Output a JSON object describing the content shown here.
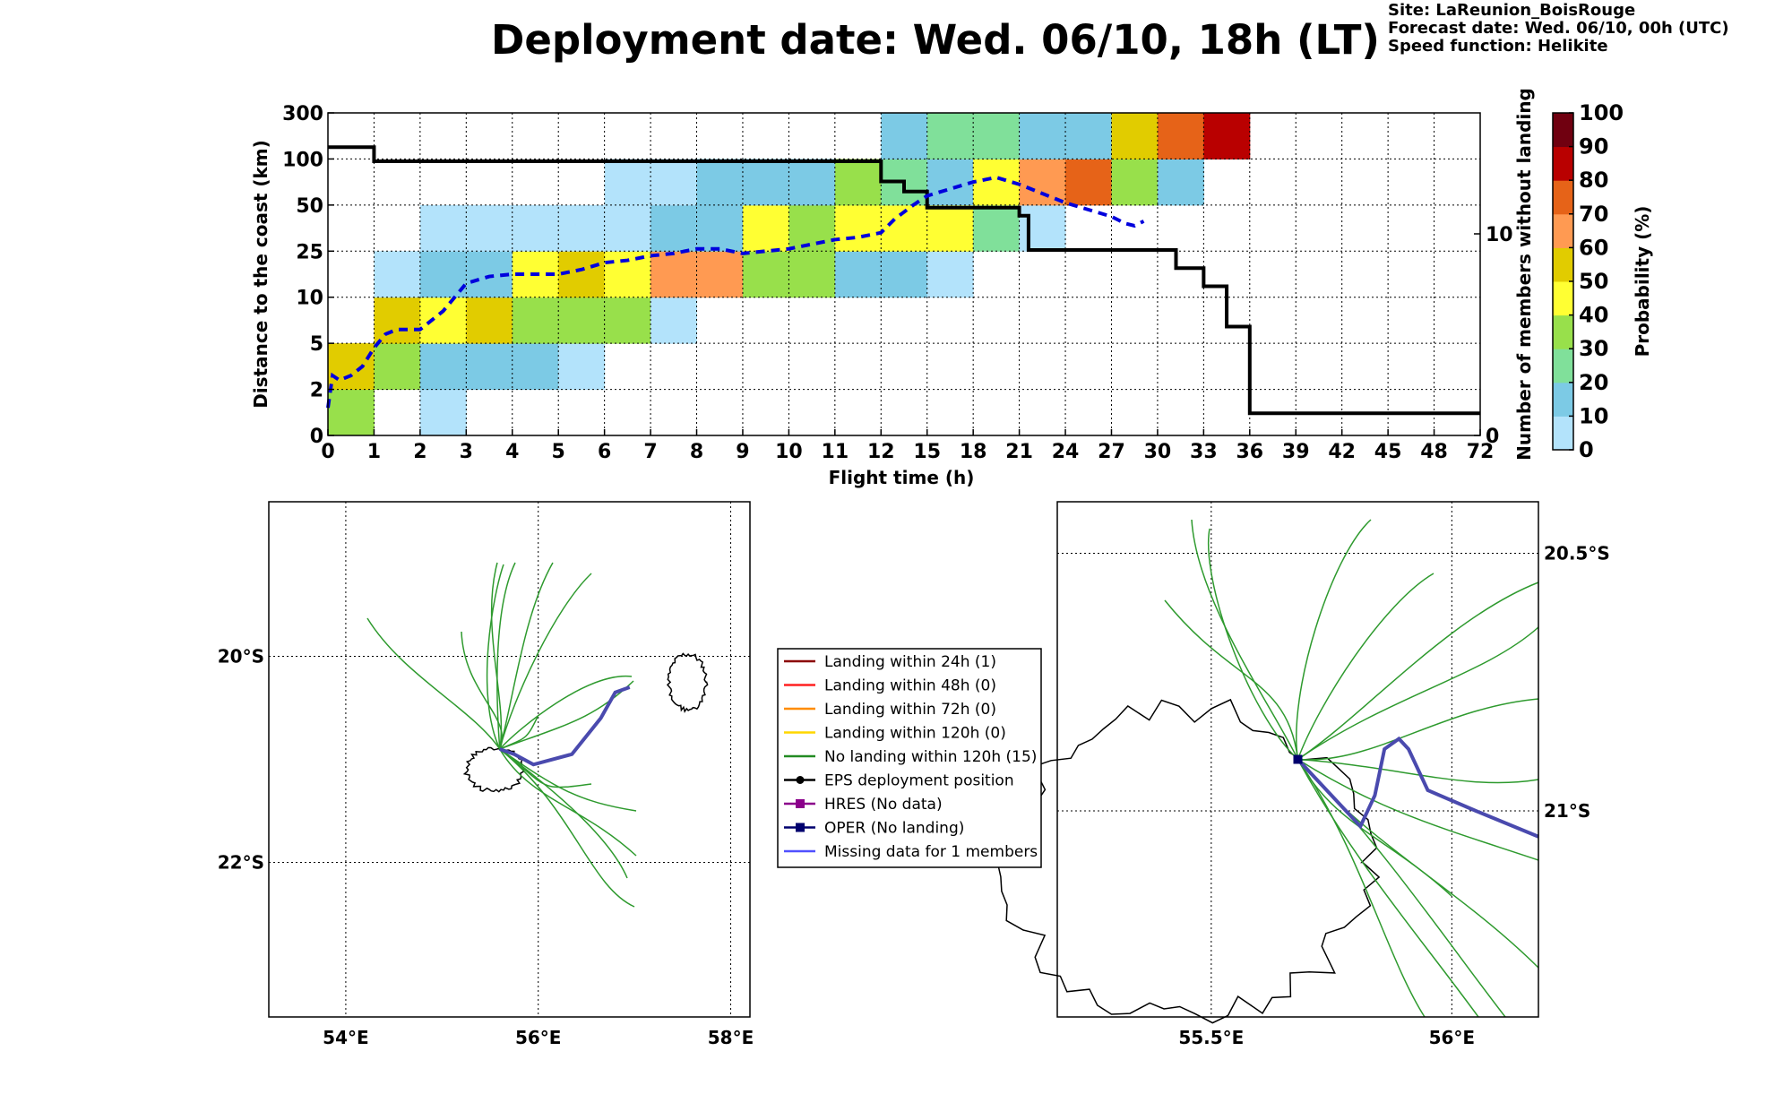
{
  "title": "Deployment date: Wed. 06/10, 18h (LT)",
  "info": {
    "site": "Site: LaReunion_BoisRouge",
    "forecast": "Forecast date: Wed. 06/10, 00h (UTC)",
    "speed": "Speed function: Helikite"
  },
  "chart_data": [
    {
      "type": "heatmap",
      "xlabel": "Flight time (h)",
      "ylabel": "Distance to the coast (km)",
      "y2label": "Number of members without landing",
      "colorbar_label": "Probability (%)",
      "x_ticks": [
        "0",
        "1",
        "2",
        "3",
        "4",
        "5",
        "6",
        "7",
        "8",
        "9",
        "10",
        "11",
        "12",
        "15",
        "18",
        "21",
        "24",
        "27",
        "30",
        "33",
        "36",
        "39",
        "42",
        "45",
        "48",
        "72"
      ],
      "y_ticks": [
        "0",
        "2",
        "5",
        "10",
        "25",
        "50",
        "100",
        "300"
      ],
      "y2_ticks": [
        "0",
        "10"
      ],
      "y2lim": [
        0,
        16
      ],
      "colorbar_ticks": [
        "0",
        "10",
        "20",
        "30",
        "40",
        "50",
        "60",
        "70",
        "80",
        "90",
        "100"
      ],
      "colorbar_colors": [
        "#b3e3fb",
        "#7ccae5",
        "#80e09a",
        "#98e04b",
        "#ffff33",
        "#e1cc00",
        "#ff9a52",
        "#e66318",
        "#b90000",
        "#700010"
      ],
      "grid": true,
      "cells_note": "cells: [x_bin_index, y_bin_index, probability %]",
      "cells": [
        [
          0,
          0,
          30
        ],
        [
          2,
          0,
          0
        ],
        [
          0,
          1,
          50
        ],
        [
          1,
          1,
          30
        ],
        [
          2,
          1,
          10
        ],
        [
          3,
          1,
          10
        ],
        [
          4,
          1,
          10
        ],
        [
          5,
          1,
          0
        ],
        [
          1,
          2,
          50
        ],
        [
          2,
          2,
          40
        ],
        [
          3,
          2,
          50
        ],
        [
          4,
          2,
          30
        ],
        [
          5,
          2,
          30
        ],
        [
          6,
          2,
          30
        ],
        [
          7,
          2,
          0
        ],
        [
          1,
          3,
          0
        ],
        [
          2,
          3,
          10
        ],
        [
          3,
          3,
          10
        ],
        [
          4,
          3,
          40
        ],
        [
          5,
          3,
          50
        ],
        [
          6,
          3,
          40
        ],
        [
          7,
          3,
          60
        ],
        [
          8,
          3,
          60
        ],
        [
          9,
          3,
          30
        ],
        [
          10,
          3,
          30
        ],
        [
          11,
          3,
          10
        ],
        [
          12,
          3,
          10
        ],
        [
          13,
          3,
          0
        ],
        [
          2,
          4,
          0
        ],
        [
          3,
          4,
          0
        ],
        [
          4,
          4,
          0
        ],
        [
          5,
          4,
          0
        ],
        [
          6,
          4,
          0
        ],
        [
          7,
          4,
          10
        ],
        [
          8,
          4,
          10
        ],
        [
          9,
          4,
          40
        ],
        [
          10,
          4,
          30
        ],
        [
          11,
          4,
          40
        ],
        [
          12,
          4,
          40
        ],
        [
          13,
          4,
          40
        ],
        [
          14,
          4,
          20
        ],
        [
          15,
          4,
          0
        ],
        [
          6,
          5,
          0
        ],
        [
          7,
          5,
          0
        ],
        [
          8,
          5,
          10
        ],
        [
          9,
          5,
          10
        ],
        [
          10,
          5,
          10
        ],
        [
          11,
          5,
          30
        ],
        [
          12,
          5,
          20
        ],
        [
          13,
          5,
          10
        ],
        [
          14,
          5,
          40
        ],
        [
          15,
          5,
          60
        ],
        [
          16,
          5,
          70
        ],
        [
          17,
          5,
          30
        ],
        [
          18,
          5,
          10
        ],
        [
          12,
          6,
          10
        ],
        [
          13,
          6,
          20
        ],
        [
          14,
          6,
          20
        ],
        [
          15,
          6,
          10
        ],
        [
          16,
          6,
          10
        ],
        [
          17,
          6,
          50
        ],
        [
          18,
          6,
          70
        ],
        [
          19,
          6,
          80
        ]
      ],
      "series": [
        {
          "name": "members without landing",
          "color": "#000000",
          "step_x_bins": [
            0,
            0.9,
            1,
            11.7,
            12,
            12.3,
            12.5,
            12.7,
            13,
            14,
            15,
            15.2,
            16,
            18,
            18.4,
            18.6,
            19,
            19.3,
            19.5,
            19.8,
            20,
            25
          ],
          "values": [
            14.3,
            14.3,
            13.6,
            13.6,
            12.6,
            12.6,
            12.1,
            12.1,
            11.3,
            11.3,
            10.9,
            9.2,
            9.2,
            9.2,
            8.3,
            8.3,
            7.4,
            7.4,
            5.4,
            5.4,
            1.1,
            1.1
          ]
        },
        {
          "name": "mean distance",
          "color": "#0000dd",
          "dashed": true,
          "x_bins": [
            0,
            0.1,
            0.25,
            0.5,
            0.75,
            1,
            1.25,
            1.5,
            2,
            2.5,
            3,
            3.5,
            4,
            4.5,
            5,
            5.5,
            6,
            6.5,
            7,
            7.5,
            8,
            8.5,
            9,
            9.5,
            10,
            10.5,
            11,
            11.5,
            12,
            12.3,
            12.7,
            13,
            13.5,
            14,
            14.5,
            15,
            15.5,
            16,
            16.5,
            17,
            17.3,
            17.5,
            17.7
          ],
          "y_bins": [
            0.6,
            1.3,
            1.2,
            1.3,
            1.5,
            1.9,
            2.2,
            2.3,
            2.3,
            2.7,
            3.3,
            3.45,
            3.5,
            3.5,
            3.5,
            3.6,
            3.75,
            3.8,
            3.9,
            3.95,
            4.05,
            4.05,
            3.95,
            4.0,
            4.05,
            4.15,
            4.25,
            4.3,
            4.4,
            4.7,
            5.0,
            5.2,
            5.35,
            5.5,
            5.6,
            5.45,
            5.25,
            5.05,
            4.9,
            4.75,
            4.6,
            4.55,
            4.65
          ]
        }
      ]
    },
    {
      "type": "map",
      "name": "regional-map",
      "lon_ticks": [
        "54°E",
        "56°E",
        "58°E"
      ],
      "lat_ticks": [
        "20°S",
        "22°S"
      ],
      "xlim": [
        53.2,
        58.2
      ],
      "ylim": [
        -23.5,
        -18.5
      ],
      "deployment": [
        55.6,
        -20.9
      ],
      "trajectories_color": "#2e9a2e",
      "oper_color": "#4a4aae"
    },
    {
      "type": "map",
      "name": "zoom-map",
      "lon_ticks": [
        "55.5°E",
        "56°E"
      ],
      "lat_ticks": [
        "20.5°S",
        "21°S"
      ],
      "xlim": [
        55.18,
        56.18
      ],
      "ylim": [
        -21.4,
        -20.4
      ],
      "deployment": [
        55.68,
        -20.9
      ],
      "trajectories_color": "#2e9a2e",
      "oper_color": "#4a4aae"
    }
  ],
  "legend": [
    {
      "label": "Landing within 24h (1)",
      "color": "#8b0000",
      "marker": "none"
    },
    {
      "label": "Landing within 48h (0)",
      "color": "#ff2020",
      "marker": "none"
    },
    {
      "label": "Landing within 72h (0)",
      "color": "#ff8c00",
      "marker": "none"
    },
    {
      "label": "Landing within 120h (0)",
      "color": "#ffd700",
      "marker": "none"
    },
    {
      "label": "No landing within 120h (15)",
      "color": "#228b22",
      "marker": "none"
    },
    {
      "label": "EPS deployment position",
      "color": "#000000",
      "marker": "circle"
    },
    {
      "label": "HRES (No data)",
      "color": "#8b008b",
      "marker": "square"
    },
    {
      "label": "OPER (No landing)",
      "color": "#00006e",
      "marker": "square"
    },
    {
      "label": "Missing data for 1 members",
      "color": "#5050ff",
      "marker": "none"
    }
  ]
}
